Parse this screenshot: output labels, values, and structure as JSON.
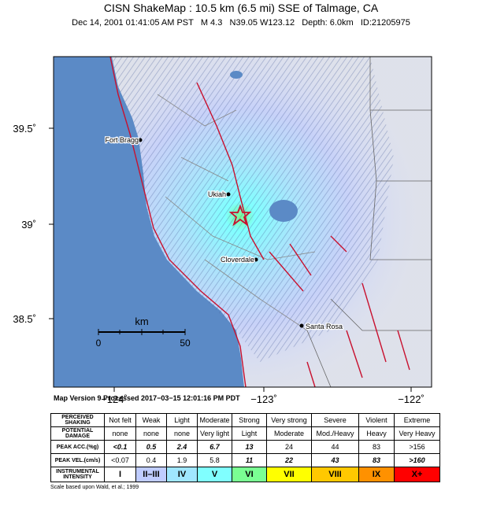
{
  "header": {
    "title": "CISN ShakeMap : 10.5 km (6.5 mi) SSE of Talmage, CA",
    "subtitle": "Dec 14, 2001 01:41:05 AM PST   M 4.3   N39.05 W123.12   Depth: 6.0km   ID:21205975"
  },
  "map": {
    "lat_labels": [
      "39.5˚",
      "39˚",
      "38.5˚"
    ],
    "lon_labels": [
      "−124˚",
      "−123˚",
      "−122˚"
    ],
    "places": [
      "Fort Bragg",
      "Ukiah",
      "Cloverdale",
      "Santa Rosa"
    ],
    "scale": {
      "unit": "km",
      "start": "0",
      "end": "50"
    }
  },
  "version": "Map Version 9 Processed 2017−03−15 12:01:16 PM PDT",
  "table": {
    "rows": [
      [
        "PERCEIVED SHAKING",
        "Not felt",
        "Weak",
        "Light",
        "Moderate",
        "Strong",
        "Very strong",
        "Severe",
        "Violent",
        "Extreme"
      ],
      [
        "POTENTIAL DAMAGE",
        "none",
        "none",
        "none",
        "Very light",
        "Light",
        "Moderate",
        "Mod./Heavy",
        "Heavy",
        "Very Heavy"
      ],
      [
        "PEAK ACC.(%g)",
        "<0.1",
        "0.5",
        "2.4",
        "6.7",
        "13",
        "24",
        "44",
        "83",
        ">156"
      ],
      [
        "PEAK VEL.(cm/s)",
        "<0.07",
        "0.4",
        "1.9",
        "5.8",
        "11",
        "22",
        "43",
        "83",
        ">160"
      ],
      [
        "INSTRUMENTAL INTENSITY",
        "I",
        "II–III",
        "IV",
        "V",
        "VI",
        "VII",
        "VIII",
        "IX",
        "X+"
      ]
    ]
  },
  "note": "Scale based upon Wald, et al.; 1999"
}
